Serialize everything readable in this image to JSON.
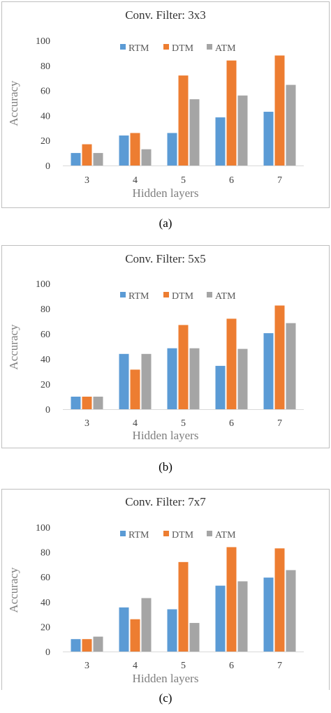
{
  "chart_data": [
    {
      "type": "bar",
      "title": "Conv. Filter: 3x3",
      "xlabel": "Hidden layers",
      "ylabel": "Accuracy",
      "ylim": [
        0,
        100
      ],
      "yticks": [
        0,
        20,
        40,
        60,
        80,
        100
      ],
      "categories": [
        "3",
        "4",
        "5",
        "6",
        "7"
      ],
      "series": [
        {
          "name": "RTM",
          "color": "#5b9bd5",
          "values": [
            10,
            24,
            26,
            38.5,
            43
          ]
        },
        {
          "name": "DTM",
          "color": "#ed7d31",
          "values": [
            17,
            26,
            72,
            84,
            88
          ]
        },
        {
          "name": "ATM",
          "color": "#a5a5a5",
          "values": [
            10,
            13,
            53,
            56,
            64.5
          ]
        }
      ],
      "legend": "top",
      "grid": false,
      "caption": "(a)"
    },
    {
      "type": "bar",
      "title": "Conv. Filter: 5x5",
      "xlabel": "Hidden layers",
      "ylabel": "Accuracy",
      "ylim": [
        0,
        100
      ],
      "yticks": [
        0,
        20,
        40,
        60,
        80,
        100
      ],
      "categories": [
        "3",
        "4",
        "5",
        "6",
        "7"
      ],
      "series": [
        {
          "name": "RTM",
          "color": "#5b9bd5",
          "values": [
            10,
            44,
            48.5,
            34.5,
            60.5
          ]
        },
        {
          "name": "DTM",
          "color": "#ed7d31",
          "values": [
            10,
            31.5,
            67,
            72,
            82.5
          ]
        },
        {
          "name": "ATM",
          "color": "#a5a5a5",
          "values": [
            10,
            44,
            48.5,
            48,
            68.5
          ]
        }
      ],
      "legend": "top",
      "grid": false,
      "caption": "(b)"
    },
    {
      "type": "bar",
      "title": "Conv. Filter: 7x7",
      "xlabel": "Hidden layers",
      "ylabel": "Accuracy",
      "ylim": [
        0,
        100
      ],
      "yticks": [
        0,
        20,
        40,
        60,
        80,
        100
      ],
      "categories": [
        "3",
        "4",
        "5",
        "6",
        "7"
      ],
      "series": [
        {
          "name": "RTM",
          "color": "#5b9bd5",
          "values": [
            10,
            35.5,
            34,
            53,
            59.5
          ]
        },
        {
          "name": "DTM",
          "color": "#ed7d31",
          "values": [
            10,
            26,
            72,
            84,
            83
          ]
        },
        {
          "name": "ATM",
          "color": "#a5a5a5",
          "values": [
            12,
            43,
            23,
            56.5,
            65.5
          ]
        }
      ],
      "legend": "top",
      "grid": false,
      "caption": "(c)"
    }
  ]
}
